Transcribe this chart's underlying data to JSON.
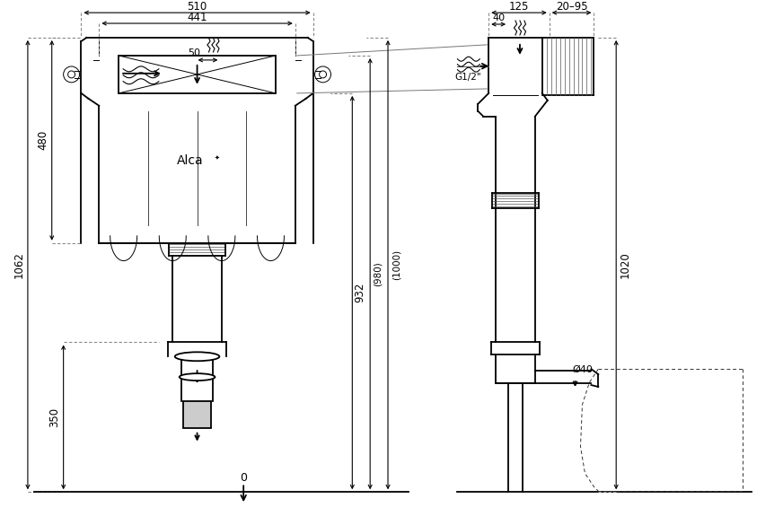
{
  "bg_color": "#ffffff",
  "lc": "#000000",
  "lw_main": 1.3,
  "lw_thin": 0.7,
  "lw_dim": 0.8,
  "figsize": [
    8.72,
    5.85
  ],
  "dpi": 100,
  "dims": {
    "510": "510",
    "441": "441",
    "50": "50",
    "480": "480",
    "1062": "1062",
    "350": "350",
    "932": "932",
    "980": "(980)",
    "1000": "(1000)",
    "125": "125",
    "20_95": "20–95",
    "40t": "40",
    "g12": "G1/2\"",
    "1020": "1020",
    "o40": "Ø40",
    "zero": "0"
  }
}
